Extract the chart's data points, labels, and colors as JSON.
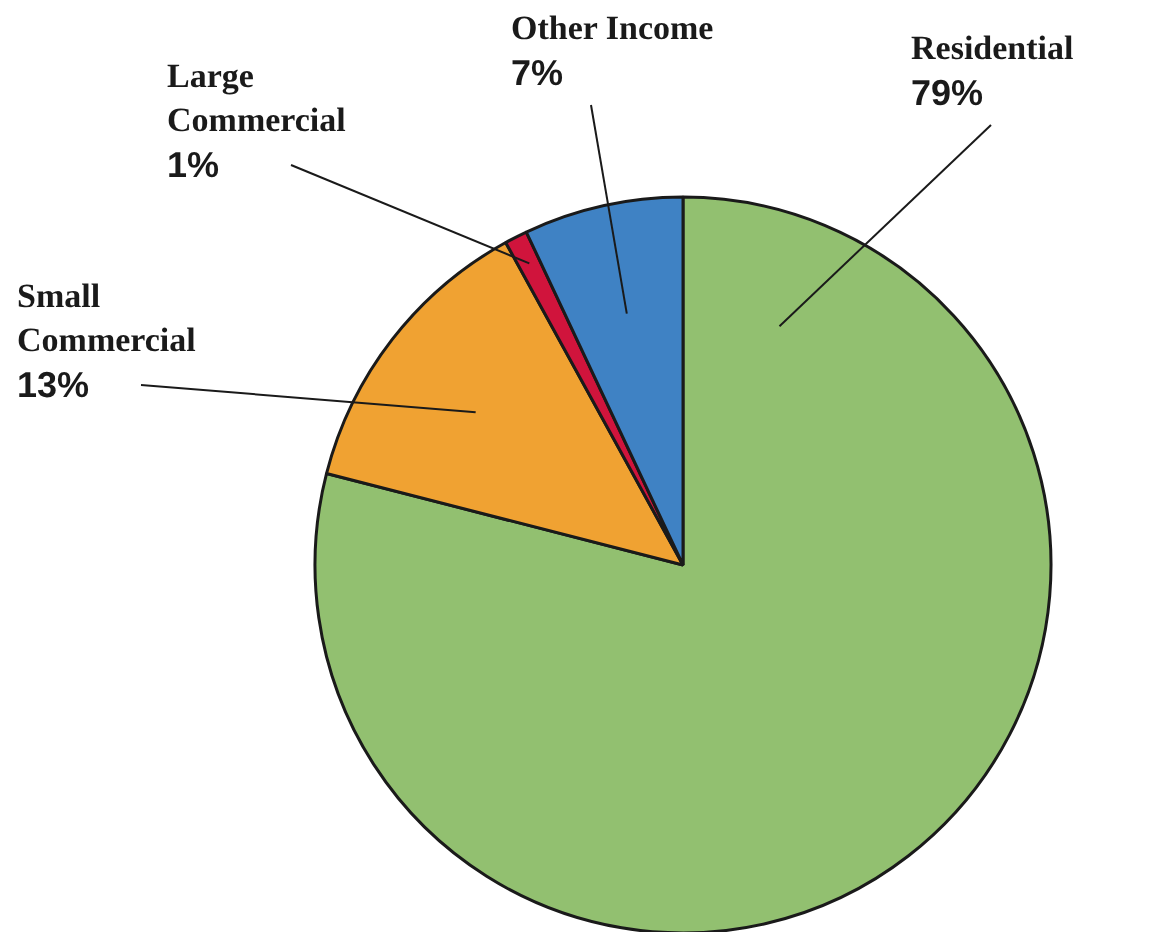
{
  "chart_data": {
    "type": "pie",
    "categories": [
      "Residential",
      "Small Commercial",
      "Large Commercial",
      "Other Income"
    ],
    "values": [
      79,
      13,
      1,
      7
    ],
    "value_labels": [
      "79%",
      "13%",
      "1%",
      "7%"
    ],
    "colors": [
      "#92c070",
      "#f0a232",
      "#d0143c",
      "#3f82c4"
    ]
  }
}
